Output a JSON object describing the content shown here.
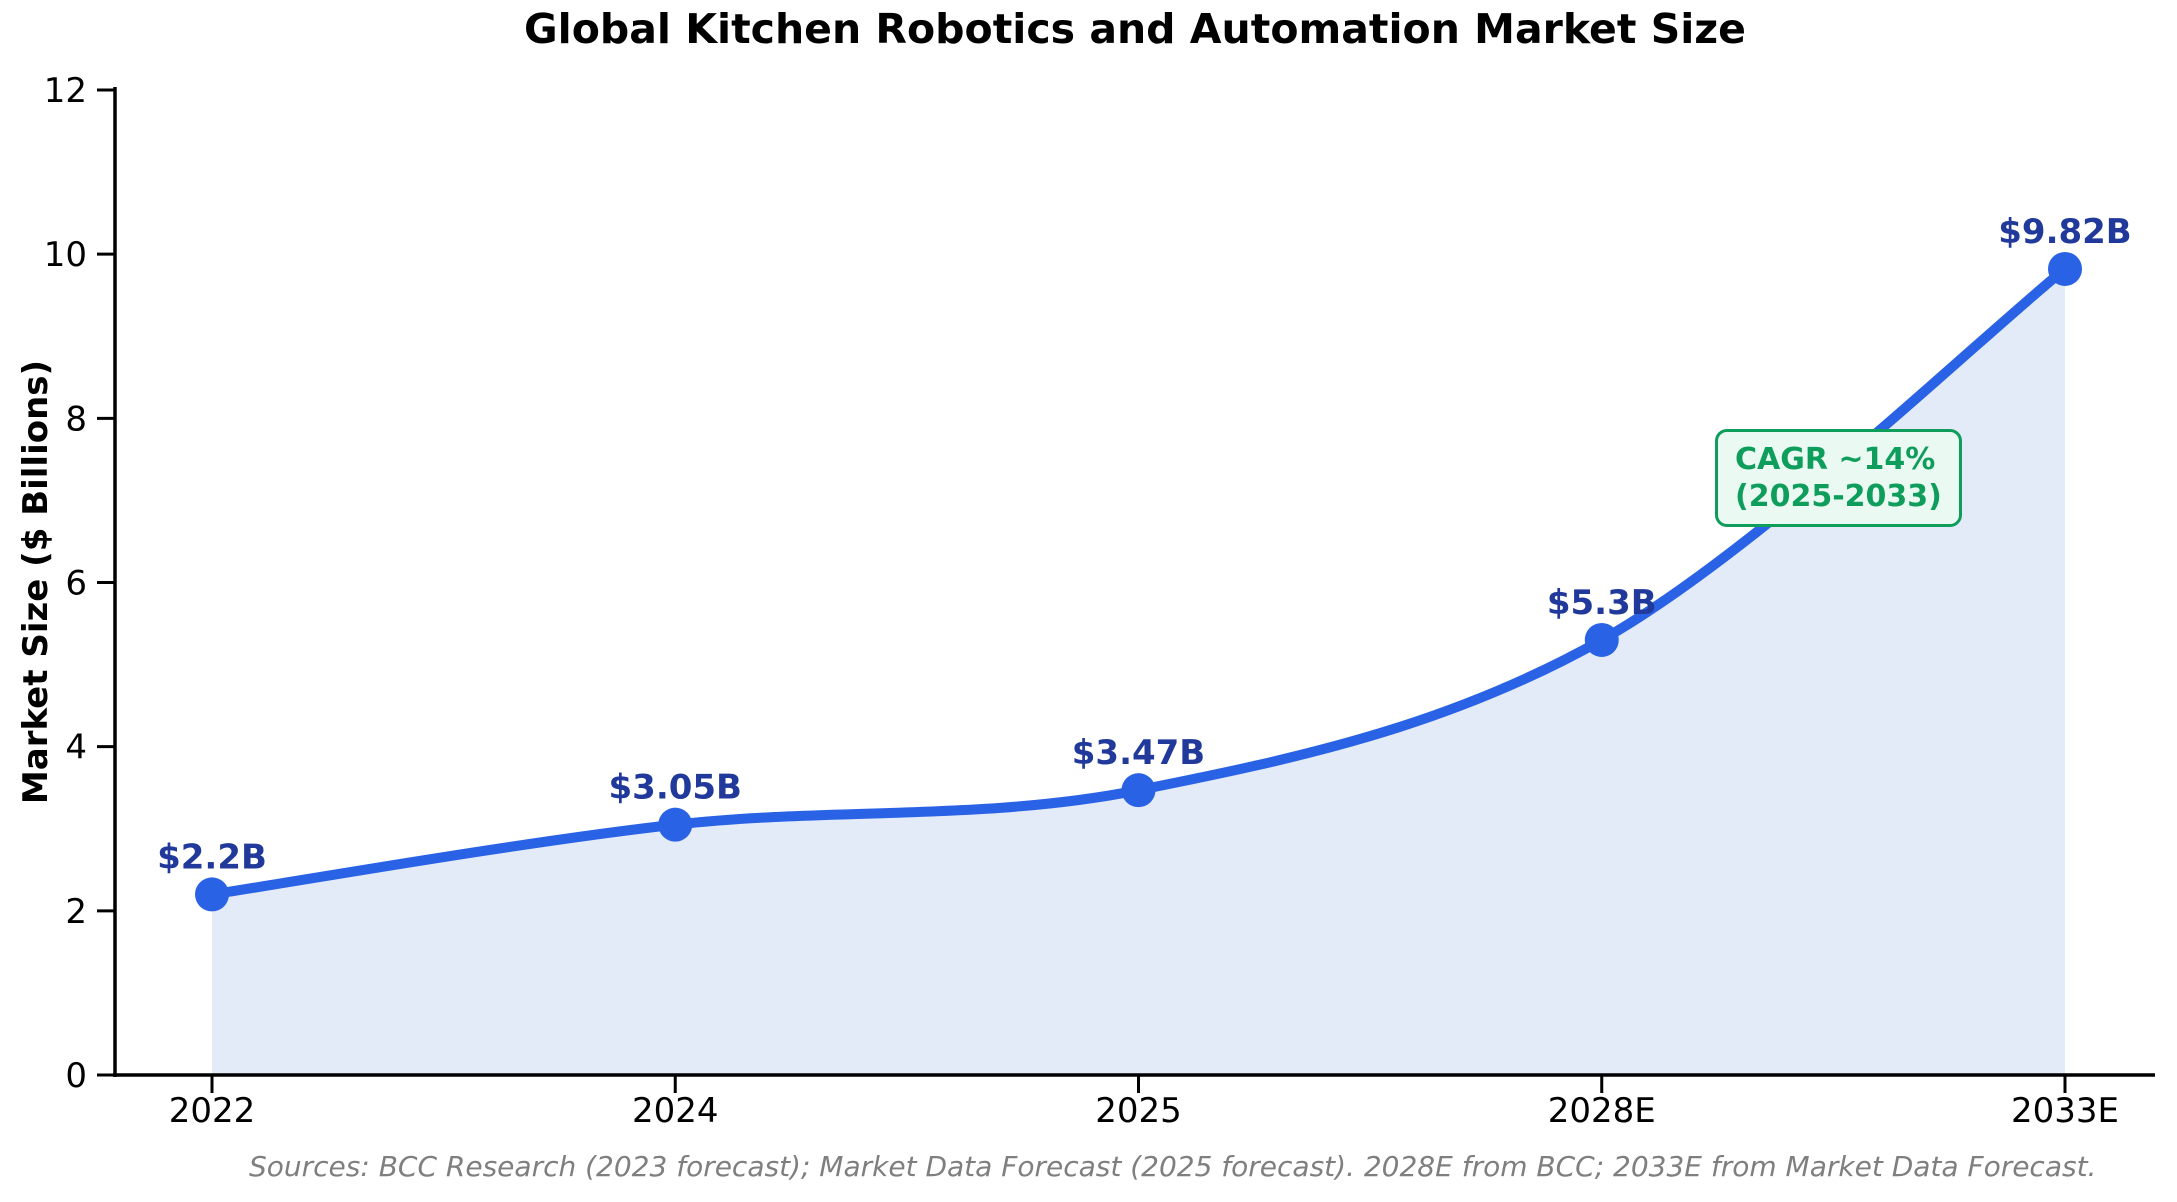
{
  "chart_data": {
    "type": "line",
    "title": "Global Kitchen Robotics and Automation Market Size",
    "xlabel": "",
    "ylabel": "Market Size ($ Billions)",
    "categories": [
      "2022",
      "2024",
      "2025",
      "2028E",
      "2033E"
    ],
    "values": [
      2.2,
      3.05,
      3.47,
      5.3,
      9.82
    ],
    "point_labels": [
      "$2.2B",
      "$3.05B",
      "$3.47B",
      "$5.3B",
      "$9.82B"
    ],
    "yticks": [
      0,
      2,
      4,
      6,
      8,
      10,
      12
    ],
    "ylim": [
      0,
      12
    ],
    "grid": false,
    "legend": "none",
    "area_fill": true,
    "smooth_line": true,
    "annotation": {
      "line1": "CAGR ~14%",
      "line2": "(2025-2033)"
    },
    "source": "Sources: BCC Research (2023 forecast); Market Data Forecast (2025 forecast). 2028E from BCC; 2033E from Market Data Forecast.",
    "colors": {
      "line": "#2a62e6",
      "area_fill": "#e3eaf8",
      "point_label": "#20399b",
      "annotation_green": "#0f9d5c",
      "annotation_bg": "#eafaf2",
      "source_gray": "#7f7f7f",
      "axis_black": "#000000"
    }
  }
}
